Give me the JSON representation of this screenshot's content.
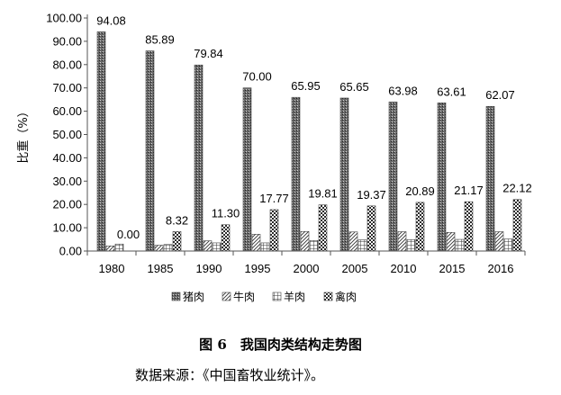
{
  "chart_data": {
    "type": "bar",
    "categories": [
      "1980",
      "1985",
      "1990",
      "1995",
      "2000",
      "2005",
      "2010",
      "2015",
      "2016"
    ],
    "series": [
      {
        "name": "猪肉",
        "values": [
          94.08,
          85.89,
          79.84,
          70.0,
          65.95,
          65.65,
          63.98,
          63.61,
          62.07
        ],
        "pattern": "crosshatch-dark",
        "data_labels": [
          "94.08",
          "85.89",
          "79.84",
          "70.00",
          "65.95",
          "65.65",
          "63.98",
          "63.61",
          "62.07"
        ]
      },
      {
        "name": "牛肉",
        "values": [
          2.2,
          2.5,
          4.4,
          7.2,
          8.4,
          8.2,
          8.3,
          8.0,
          8.3
        ],
        "pattern": "diagonal"
      },
      {
        "name": "羊肉",
        "values": [
          3.0,
          2.8,
          3.5,
          3.5,
          4.5,
          4.8,
          4.9,
          5.0,
          5.2
        ],
        "pattern": "grid"
      },
      {
        "name": "禽肉",
        "values": [
          0.0,
          8.32,
          11.3,
          17.77,
          19.81,
          19.37,
          20.89,
          21.17,
          22.12
        ],
        "pattern": "checker",
        "data_labels": [
          "0.00",
          "8.32",
          "11.30",
          "17.77",
          "19.81",
          "19.37",
          "20.89",
          "21.17",
          "22.12"
        ]
      }
    ],
    "ylabel": "比重（%）",
    "ylim": [
      0,
      100
    ],
    "yticks": [
      "0.00",
      "10.00",
      "20.00",
      "30.00",
      "40.00",
      "50.00",
      "60.00",
      "70.00",
      "80.00",
      "90.00",
      "100.00"
    ],
    "legend_position": "bottom",
    "grid": false
  },
  "caption": "图 6　我国肉类结构走势图",
  "source": "数据来源：《中国畜牧业统计》。"
}
